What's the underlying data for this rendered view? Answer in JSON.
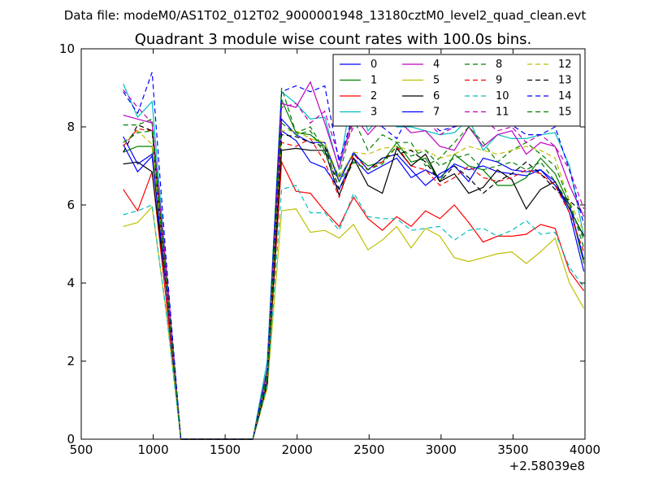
{
  "figure": {
    "suptitle": "Data file: modeM0/AS1T02_012T02_9000001948_13180cztM0_level2_quad_clean.evt"
  },
  "chart_data": {
    "type": "line",
    "title": "Quadrant 3 module wise count rates with 100.0s bins.",
    "xlabel": "",
    "ylabel": "",
    "x_offset_label": "+2.58039e8",
    "xlim": [
      500,
      4000
    ],
    "ylim": [
      0,
      10
    ],
    "xticks": [
      "500",
      "1000",
      "1500",
      "2000",
      "2500",
      "3000",
      "3500",
      "4000"
    ],
    "yticks": [
      "0",
      "2",
      "4",
      "6",
      "8",
      "10"
    ],
    "grid": false,
    "legend_position": "top-right",
    "x": [
      792,
      892,
      992,
      1092,
      1192,
      1292,
      1392,
      1492,
      1592,
      1692,
      1792,
      1892,
      1992,
      2092,
      2192,
      2292,
      2392,
      2492,
      2592,
      2692,
      2792,
      2892,
      2992,
      3092,
      3192,
      3292,
      3392,
      3492,
      3592,
      3692,
      3792,
      3892,
      3992
    ],
    "series": [
      {
        "name": "0",
        "color": "#0000ff",
        "dash": "solid",
        "values": [
          7.75,
          7.05,
          7.3,
          3.9,
          0,
          0,
          0,
          0,
          0,
          0,
          1.5,
          7.9,
          7.65,
          7.1,
          6.95,
          6.4,
          7.2,
          6.8,
          7.0,
          7.2,
          6.7,
          6.9,
          6.7,
          7.05,
          6.9,
          7.0,
          6.85,
          6.8,
          6.75,
          6.9,
          6.6,
          5.8,
          4.3
        ]
      },
      {
        "name": "1",
        "color": "#008000",
        "dash": "solid",
        "values": [
          7.35,
          7.5,
          7.5,
          4.0,
          0,
          0,
          0,
          0,
          0,
          0,
          1.7,
          8.7,
          7.85,
          7.8,
          7.5,
          6.7,
          7.3,
          7.0,
          7.1,
          7.6,
          7.1,
          7.2,
          6.6,
          7.3,
          7.0,
          6.9,
          6.5,
          6.5,
          6.7,
          7.2,
          6.8,
          6.0,
          4.5
        ]
      },
      {
        "name": "2",
        "color": "#ff0000",
        "dash": "solid",
        "values": [
          6.4,
          5.85,
          6.85,
          3.5,
          0,
          0,
          0,
          0,
          0,
          0,
          1.4,
          7.1,
          6.35,
          6.3,
          5.85,
          5.45,
          6.2,
          5.65,
          5.35,
          5.7,
          5.45,
          5.85,
          5.65,
          6.0,
          5.55,
          5.05,
          5.2,
          5.2,
          5.25,
          5.5,
          5.4,
          4.3,
          3.8
        ]
      },
      {
        "name": "3",
        "color": "#00bfbf",
        "dash": "solid",
        "values": [
          9.1,
          8.25,
          8.65,
          4.3,
          0,
          0,
          0,
          0,
          0,
          0,
          2.0,
          8.9,
          8.6,
          8.2,
          8.25,
          6.9,
          9.1,
          7.9,
          8.3,
          8.0,
          8.0,
          7.9,
          7.8,
          7.85,
          8.2,
          7.4,
          7.8,
          7.7,
          7.7,
          7.8,
          7.85,
          7.0,
          5.2
        ]
      },
      {
        "name": "4",
        "color": "#bf00bf",
        "dash": "solid",
        "values": [
          8.3,
          8.2,
          8.1,
          4.3,
          0,
          0,
          0,
          0,
          0,
          0,
          1.6,
          8.6,
          8.5,
          9.15,
          8.1,
          6.95,
          8.3,
          7.8,
          8.2,
          8.2,
          7.85,
          7.9,
          7.5,
          7.4,
          8.0,
          7.5,
          7.8,
          7.9,
          7.3,
          7.6,
          7.5,
          6.5,
          5.7
        ]
      },
      {
        "name": "5",
        "color": "#bfbf00",
        "dash": "solid",
        "values": [
          5.45,
          5.55,
          5.95,
          3.2,
          0,
          0,
          0,
          0,
          0,
          0,
          1.3,
          5.85,
          5.9,
          5.3,
          5.35,
          5.15,
          5.5,
          4.85,
          5.1,
          5.45,
          4.9,
          5.4,
          5.2,
          4.65,
          4.55,
          4.65,
          4.75,
          4.8,
          4.5,
          4.8,
          5.15,
          4.0,
          3.35
        ]
      },
      {
        "name": "6",
        "color": "#000000",
        "dash": "solid",
        "values": [
          7.05,
          7.1,
          6.85,
          3.8,
          0,
          0,
          0,
          0,
          0,
          0,
          1.4,
          7.4,
          7.45,
          7.4,
          7.4,
          6.25,
          7.2,
          6.5,
          6.3,
          7.45,
          7.0,
          7.3,
          6.6,
          6.8,
          6.3,
          6.45,
          6.9,
          6.65,
          5.9,
          6.4,
          6.6,
          5.9,
          5.2
        ]
      },
      {
        "name": "7",
        "color": "#0000ff",
        "dash": "solid",
        "values": [
          7.55,
          6.85,
          7.25,
          3.8,
          0,
          0,
          0,
          0,
          0,
          0,
          1.5,
          8.2,
          7.8,
          7.6,
          7.6,
          6.6,
          7.35,
          6.9,
          7.2,
          7.3,
          6.9,
          6.5,
          6.8,
          7.0,
          6.6,
          7.2,
          7.1,
          6.9,
          6.85,
          6.9,
          6.5,
          6.0,
          4.6
        ]
      },
      {
        "name": "8",
        "color": "#008000",
        "dash": "dashed",
        "values": [
          8.05,
          8.05,
          8.2,
          4.1,
          0,
          0,
          0,
          0,
          0,
          0,
          1.8,
          9.0,
          7.85,
          8.0,
          7.4,
          6.75,
          8.2,
          7.4,
          7.8,
          7.6,
          7.6,
          7.0,
          7.2,
          7.6,
          8.0,
          7.6,
          7.1,
          7.4,
          7.6,
          7.3,
          7.0,
          6.1,
          4.9
        ]
      },
      {
        "name": "9",
        "color": "#ff0000",
        "dash": "dashed",
        "values": [
          7.5,
          7.95,
          7.9,
          3.9,
          0,
          0,
          0,
          0,
          0,
          0,
          1.5,
          7.6,
          7.5,
          7.7,
          7.1,
          6.2,
          7.3,
          6.9,
          7.1,
          7.5,
          7.0,
          6.9,
          6.5,
          6.7,
          7.0,
          6.7,
          6.6,
          6.7,
          6.9,
          6.8,
          6.5,
          5.8,
          4.8
        ]
      },
      {
        "name": "10",
        "color": "#00bfbf",
        "dash": "dashed",
        "values": [
          5.75,
          5.85,
          6.0,
          3.2,
          0,
          0,
          0,
          0,
          0,
          0,
          1.4,
          6.4,
          6.5,
          5.8,
          5.8,
          5.35,
          6.3,
          5.7,
          5.65,
          5.65,
          5.35,
          5.4,
          5.45,
          5.1,
          5.35,
          5.4,
          5.2,
          5.35,
          5.6,
          5.25,
          5.3,
          4.4,
          3.9
        ]
      },
      {
        "name": "11",
        "color": "#bf00bf",
        "dash": "dashed",
        "values": [
          8.95,
          8.5,
          8.1,
          4.3,
          0,
          0,
          0,
          0,
          0,
          0,
          1.8,
          8.5,
          8.6,
          8.1,
          8.4,
          7.2,
          8.0,
          8.2,
          8.0,
          8.2,
          8.3,
          8.2,
          7.8,
          8.0,
          8.1,
          8.2,
          7.9,
          8.0,
          7.6,
          7.8,
          7.5,
          6.9,
          5.9
        ]
      },
      {
        "name": "12",
        "color": "#bfbf00",
        "dash": "dashed",
        "values": [
          7.6,
          7.9,
          7.55,
          4.0,
          0,
          0,
          0,
          0,
          0,
          0,
          1.6,
          7.9,
          7.9,
          7.7,
          7.6,
          6.7,
          7.35,
          7.3,
          7.45,
          7.5,
          7.4,
          7.4,
          7.2,
          7.3,
          7.5,
          7.4,
          7.3,
          7.4,
          7.5,
          7.4,
          7.2,
          6.1,
          5.3
        ]
      },
      {
        "name": "13",
        "color": "#000000",
        "dash": "dashed",
        "values": [
          7.35,
          8.05,
          7.9,
          4.0,
          0,
          0,
          0,
          0,
          0,
          0,
          1.5,
          7.8,
          7.75,
          7.6,
          7.5,
          6.4,
          7.1,
          6.9,
          7.2,
          7.3,
          7.4,
          7.1,
          6.6,
          7.0,
          6.7,
          6.3,
          6.6,
          6.8,
          7.1,
          6.8,
          6.4,
          6.1,
          5.8
        ]
      },
      {
        "name": "14",
        "color": "#0000ff",
        "dash": "dashed",
        "values": [
          8.9,
          8.35,
          9.4,
          4.5,
          0,
          0,
          0,
          0,
          0,
          0,
          1.8,
          8.9,
          9.05,
          8.9,
          9.05,
          7.1,
          8.35,
          8.1,
          8.0,
          7.7,
          8.4,
          8.2,
          7.9,
          8.0,
          8.35,
          8.2,
          8.3,
          8.05,
          7.8,
          7.8,
          8.0,
          6.9,
          5.5
        ]
      },
      {
        "name": "15",
        "color": "#008000",
        "dash": "dashed",
        "values": [
          7.6,
          7.85,
          7.9,
          4.0,
          0,
          0,
          0,
          0,
          0,
          0,
          1.6,
          8.1,
          7.8,
          7.9,
          7.3,
          6.6,
          7.1,
          6.9,
          7.05,
          7.5,
          7.25,
          7.4,
          7.0,
          7.2,
          7.3,
          6.9,
          7.0,
          7.1,
          6.9,
          7.1,
          6.6,
          6.0,
          5.1
        ]
      }
    ]
  }
}
